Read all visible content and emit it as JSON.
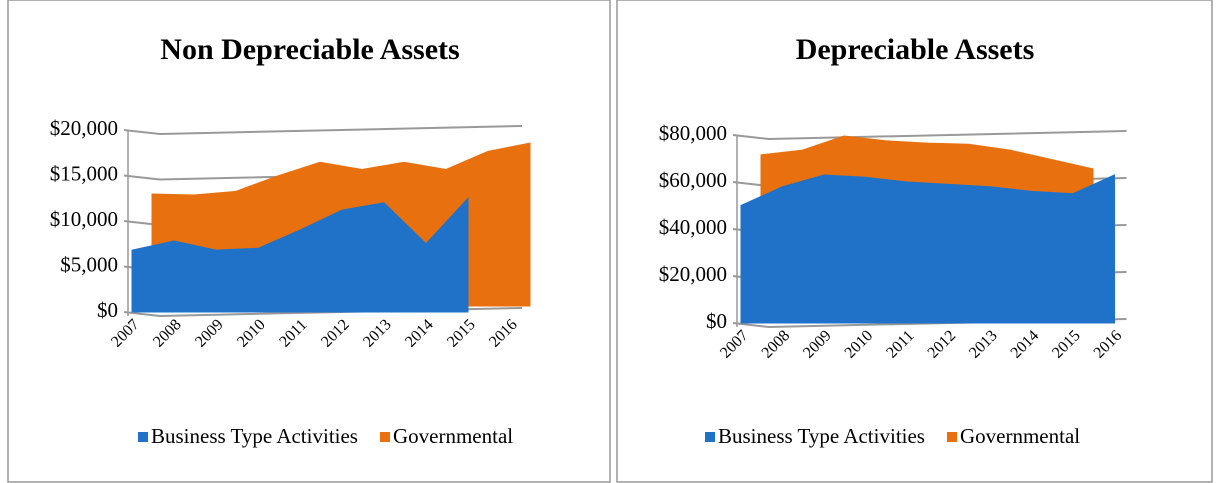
{
  "chart_data": [
    {
      "type": "area",
      "title": "Non Depreciable Assets",
      "categories": [
        "2007",
        "2008",
        "2009",
        "2010",
        "2011",
        "2012",
        "2013",
        "2014",
        "2015",
        "2016"
      ],
      "series": [
        {
          "name": "Business Type Activities",
          "color": "#1f72c8",
          "values": [
            6800,
            7800,
            6800,
            7000,
            9000,
            11200,
            12000,
            7500,
            12500,
            null
          ]
        },
        {
          "name": "Governmental",
          "color": "#e8700f",
          "values": [
            12300,
            12200,
            12600,
            14300,
            15800,
            15000,
            15800,
            15000,
            17000,
            17900
          ]
        }
      ],
      "ylim": [
        0,
        20000
      ],
      "yticks": [
        {
          "value": 0,
          "label": "$0"
        },
        {
          "value": 5000,
          "label": "$5,000"
        },
        {
          "value": 10000,
          "label": "$10,000"
        },
        {
          "value": 15000,
          "label": "$15,000"
        },
        {
          "value": 20000,
          "label": "$20,000"
        }
      ],
      "grid": true,
      "legend": "bottom"
    },
    {
      "type": "area",
      "title": "Depreciable Assets",
      "categories": [
        "2007",
        "2008",
        "2009",
        "2010",
        "2011",
        "2012",
        "2013",
        "2014",
        "2015",
        "2016"
      ],
      "series": [
        {
          "name": "Business Type Activities",
          "color": "#1f72c8",
          "values": [
            50000,
            58000,
            63000,
            62000,
            60000,
            59000,
            58000,
            56000,
            55000,
            63000
          ]
        },
        {
          "name": "Governmental",
          "color": "#e8700f",
          "values": [
            69000,
            71000,
            77000,
            75000,
            74000,
            73500,
            71000,
            67000,
            63000,
            null
          ]
        }
      ],
      "ylim": [
        0,
        80000
      ],
      "yticks": [
        {
          "value": 0,
          "label": "$0"
        },
        {
          "value": 20000,
          "label": "$20,000"
        },
        {
          "value": 40000,
          "label": "$40,000"
        },
        {
          "value": 60000,
          "label": "$60,000"
        },
        {
          "value": 80000,
          "label": "$80,000"
        }
      ],
      "grid": true,
      "legend": "bottom"
    }
  ]
}
